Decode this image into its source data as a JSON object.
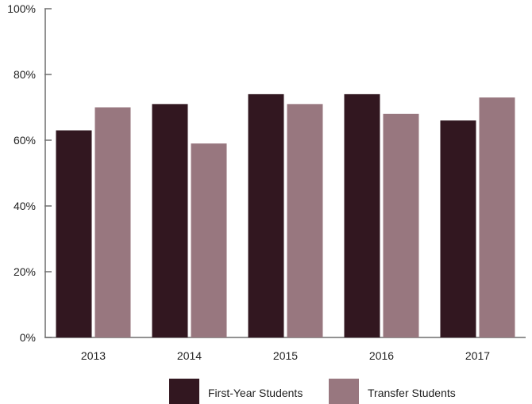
{
  "chart_data": {
    "type": "bar",
    "categories": [
      "2013",
      "2014",
      "2015",
      "2016",
      "2017"
    ],
    "series": [
      {
        "name": "First-Year Students",
        "color": "#321720",
        "values": [
          63,
          71,
          74,
          74,
          66
        ]
      },
      {
        "name": "Transfer Students",
        "color": "#98777f",
        "values": [
          70,
          59,
          71,
          68,
          73
        ]
      }
    ],
    "y_ticks": [
      0,
      20,
      40,
      60,
      80,
      100
    ],
    "y_tick_labels": [
      "0%",
      "20%",
      "40%",
      "60%",
      "80%",
      "100%"
    ],
    "ylim": [
      0,
      100
    ],
    "grid": false,
    "legend": "bottom-center"
  }
}
